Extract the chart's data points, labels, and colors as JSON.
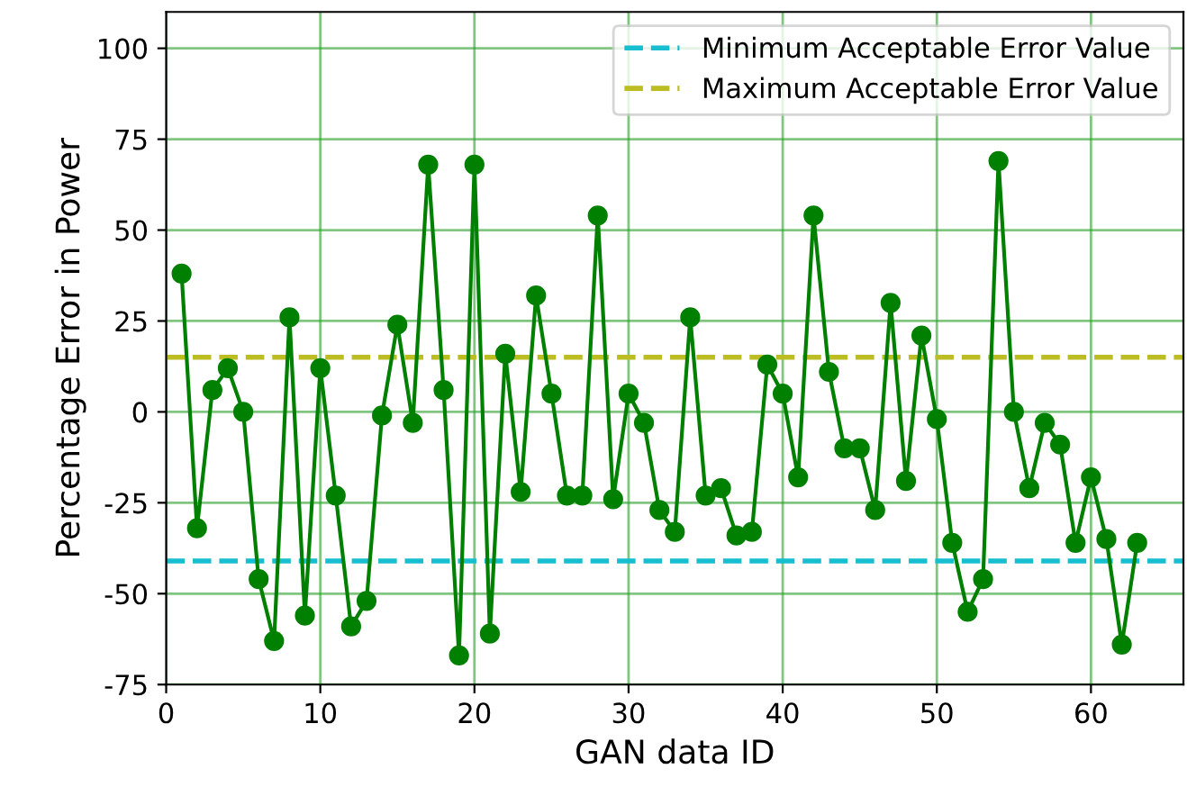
{
  "chart_data": {
    "type": "line",
    "xlabel": "GAN data ID",
    "ylabel": "Percentage Error in Power",
    "x": [
      1,
      2,
      3,
      4,
      5,
      6,
      7,
      8,
      9,
      10,
      11,
      12,
      13,
      14,
      15,
      16,
      17,
      18,
      19,
      20,
      21,
      22,
      23,
      24,
      25,
      26,
      27,
      28,
      29,
      30,
      31,
      32,
      33,
      34,
      35,
      36,
      37,
      38,
      39,
      40,
      41,
      42,
      43,
      44,
      45,
      46,
      47,
      48,
      49,
      50,
      51,
      52,
      53,
      54,
      55,
      56,
      57,
      58,
      59,
      60,
      61,
      62,
      63
    ],
    "series": [
      {
        "color": "#008000",
        "values": [
          38,
          -32,
          6,
          12,
          0,
          -46,
          -63,
          26,
          -56,
          12,
          -23,
          -59,
          -52,
          -1,
          24,
          -3,
          68,
          6,
          -67,
          68,
          -61,
          16,
          -22,
          32,
          5,
          -23,
          -23,
          54,
          -24,
          5,
          -3,
          -27,
          -33,
          26,
          -23,
          -21,
          -34,
          -33,
          13,
          5,
          -18,
          54,
          11,
          -10,
          -10,
          -27,
          30,
          -19,
          21,
          -2,
          -36,
          -55,
          -46,
          69,
          0,
          -21,
          -3,
          -9,
          -36,
          -18,
          -35,
          -64,
          -36
        ]
      }
    ],
    "marker": "circle",
    "line_style": "solid",
    "ref_lines": [
      {
        "axis": "y",
        "value": -41,
        "label": "Minimum Acceptable Error Value",
        "color": "#17becf",
        "line_style": "dashed"
      },
      {
        "axis": "y",
        "value": 15,
        "label": "Maximum Acceptable Error Value",
        "color": "#bcbd22",
        "line_style": "dashed"
      }
    ],
    "xlim": [
      0,
      66
    ],
    "ylim": [
      -75,
      110
    ],
    "xticks": [
      0,
      10,
      20,
      30,
      40,
      50,
      60
    ],
    "yticks": [
      -75,
      -50,
      -25,
      0,
      25,
      50,
      75,
      100
    ],
    "grid": true,
    "legend": "top right"
  }
}
